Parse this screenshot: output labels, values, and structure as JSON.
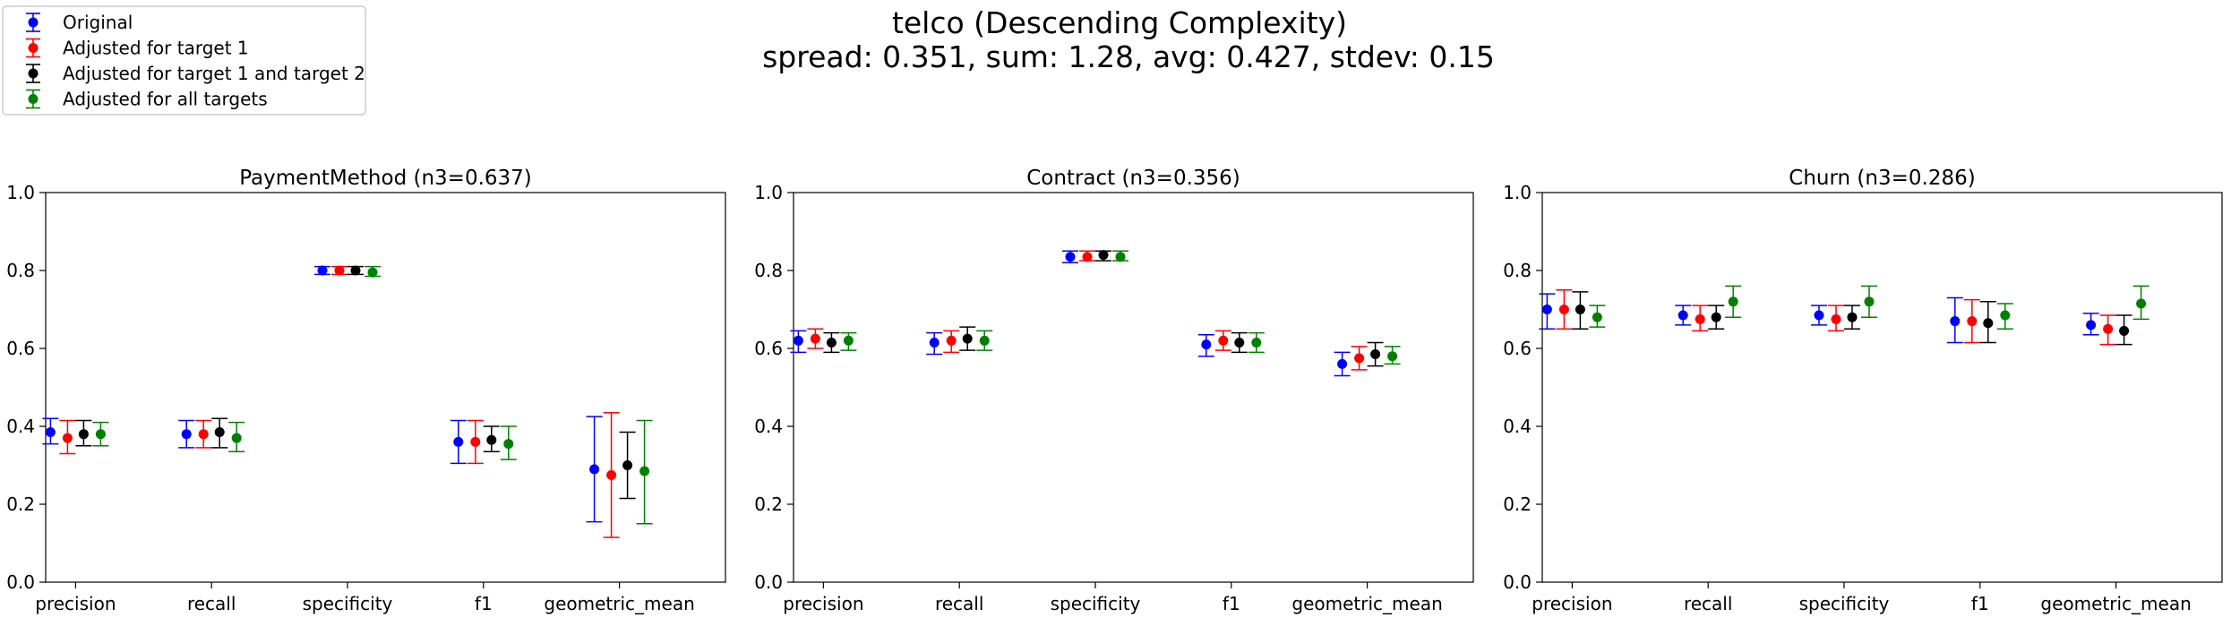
{
  "figure": {
    "title_line1": "telco (Descending Complexity)",
    "title_line2": "spread: 0.351, sum: 1.28, avg: 0.427, stdev: 0.15"
  },
  "legend": {
    "placement": "top-left",
    "entries": [
      {
        "label": "Original",
        "color": "#0000ff"
      },
      {
        "label": "Adjusted for target 1",
        "color": "#ff0000"
      },
      {
        "label": "Adjusted for target 1 and target 2",
        "color": "#000000"
      },
      {
        "label": "Adjusted for all targets",
        "color": "#008000"
      }
    ]
  },
  "chart_data": [
    {
      "type": "scatter",
      "error_bars": true,
      "title": "PaymentMethod (n3=0.637)",
      "categories": [
        "precision",
        "recall",
        "specificity",
        "f1",
        "geometric_mean"
      ],
      "ylim": [
        0.0,
        1.0
      ],
      "yticks": [
        "0.0",
        "0.2",
        "0.4",
        "0.6",
        "0.8",
        "1.0"
      ],
      "grid": false,
      "series": [
        {
          "name": "Original",
          "color": "#0000ff",
          "values": [
            0.385,
            0.38,
            0.8,
            0.36,
            0.29
          ],
          "lower": [
            0.355,
            0.345,
            0.79,
            0.305,
            0.155
          ],
          "upper": [
            0.42,
            0.415,
            0.81,
            0.415,
            0.425
          ]
        },
        {
          "name": "Adjusted for target 1",
          "color": "#ff0000",
          "values": [
            0.37,
            0.38,
            0.8,
            0.36,
            0.275
          ],
          "lower": [
            0.33,
            0.345,
            0.79,
            0.305,
            0.115
          ],
          "upper": [
            0.415,
            0.415,
            0.81,
            0.415,
            0.435
          ]
        },
        {
          "name": "Adjusted for target 1 and target 2",
          "color": "#000000",
          "values": [
            0.38,
            0.385,
            0.8,
            0.365,
            0.3
          ],
          "lower": [
            0.35,
            0.345,
            0.79,
            0.335,
            0.215
          ],
          "upper": [
            0.415,
            0.42,
            0.81,
            0.4,
            0.385
          ]
        },
        {
          "name": "Adjusted for all targets",
          "color": "#008000",
          "values": [
            0.38,
            0.37,
            0.795,
            0.355,
            0.285
          ],
          "lower": [
            0.35,
            0.335,
            0.785,
            0.315,
            0.15
          ],
          "upper": [
            0.41,
            0.41,
            0.81,
            0.4,
            0.415
          ]
        }
      ]
    },
    {
      "type": "scatter",
      "error_bars": true,
      "title": "Contract (n3=0.356)",
      "categories": [
        "precision",
        "recall",
        "specificity",
        "f1",
        "geometric_mean"
      ],
      "ylim": [
        0.0,
        1.0
      ],
      "yticks": [
        "0.0",
        "0.2",
        "0.4",
        "0.6",
        "0.8",
        "1.0"
      ],
      "grid": false,
      "series": [
        {
          "name": "Original",
          "color": "#0000ff",
          "values": [
            0.62,
            0.615,
            0.835,
            0.61,
            0.56
          ],
          "lower": [
            0.59,
            0.585,
            0.82,
            0.58,
            0.53
          ],
          "upper": [
            0.645,
            0.64,
            0.85,
            0.635,
            0.59
          ]
        },
        {
          "name": "Adjusted for target 1",
          "color": "#ff0000",
          "values": [
            0.625,
            0.62,
            0.835,
            0.62,
            0.575
          ],
          "lower": [
            0.6,
            0.59,
            0.825,
            0.595,
            0.545
          ],
          "upper": [
            0.65,
            0.645,
            0.85,
            0.645,
            0.605
          ]
        },
        {
          "name": "Adjusted for target 1 and target 2",
          "color": "#000000",
          "values": [
            0.615,
            0.625,
            0.84,
            0.615,
            0.585
          ],
          "lower": [
            0.59,
            0.595,
            0.825,
            0.59,
            0.555
          ],
          "upper": [
            0.64,
            0.655,
            0.85,
            0.64,
            0.615
          ]
        },
        {
          "name": "Adjusted for all targets",
          "color": "#008000",
          "values": [
            0.62,
            0.62,
            0.835,
            0.615,
            0.58
          ],
          "lower": [
            0.595,
            0.595,
            0.825,
            0.59,
            0.56
          ],
          "upper": [
            0.64,
            0.645,
            0.85,
            0.64,
            0.605
          ]
        }
      ]
    },
    {
      "type": "scatter",
      "error_bars": true,
      "title": "Churn (n3=0.286)",
      "categories": [
        "precision",
        "recall",
        "specificity",
        "f1",
        "geometric_mean"
      ],
      "ylim": [
        0.0,
        1.0
      ],
      "yticks": [
        "0.0",
        "0.2",
        "0.4",
        "0.6",
        "0.8",
        "1.0"
      ],
      "grid": false,
      "series": [
        {
          "name": "Original",
          "color": "#0000ff",
          "values": [
            0.7,
            0.685,
            0.685,
            0.67,
            0.66
          ],
          "lower": [
            0.65,
            0.66,
            0.66,
            0.615,
            0.635
          ],
          "upper": [
            0.74,
            0.71,
            0.71,
            0.73,
            0.69
          ]
        },
        {
          "name": "Adjusted for target 1",
          "color": "#ff0000",
          "values": [
            0.7,
            0.675,
            0.675,
            0.67,
            0.65
          ],
          "lower": [
            0.65,
            0.645,
            0.645,
            0.615,
            0.61
          ],
          "upper": [
            0.75,
            0.71,
            0.71,
            0.725,
            0.685
          ]
        },
        {
          "name": "Adjusted for target 1 and target 2",
          "color": "#000000",
          "values": [
            0.7,
            0.68,
            0.68,
            0.665,
            0.645
          ],
          "lower": [
            0.65,
            0.65,
            0.65,
            0.615,
            0.61
          ],
          "upper": [
            0.745,
            0.71,
            0.71,
            0.72,
            0.685
          ]
        },
        {
          "name": "Adjusted for all targets",
          "color": "#008000",
          "values": [
            0.68,
            0.72,
            0.72,
            0.685,
            0.715
          ],
          "lower": [
            0.655,
            0.68,
            0.68,
            0.65,
            0.675
          ],
          "upper": [
            0.71,
            0.76,
            0.76,
            0.715,
            0.76
          ]
        }
      ]
    }
  ]
}
